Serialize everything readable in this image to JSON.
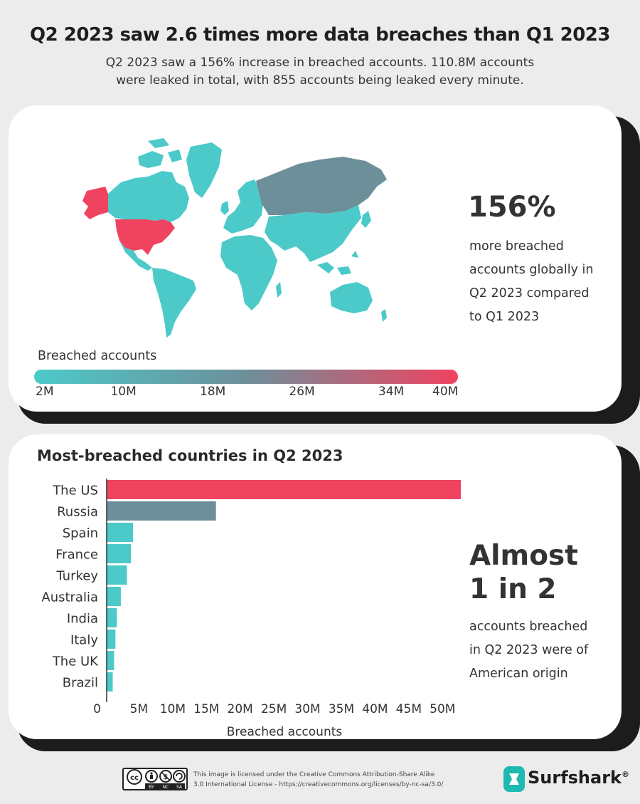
{
  "header": {
    "title": "Q2 2023 saw 2.6 times more data breaches than Q1 2023",
    "subtitle_line1": "Q2 2023 saw a 156% increase in breached accounts. 110.8M accounts",
    "subtitle_line2": "were leaked in total, with 855 accounts being leaked every minute."
  },
  "map_panel": {
    "stat_value": "156%",
    "stat_lines": [
      "more breached",
      "accounts globally in",
      "Q2 2023 compared",
      "to Q1 2023"
    ],
    "legend_title": "Breached accounts",
    "legend_ticks": [
      "2M",
      "10M",
      "18M",
      "26M",
      "34M",
      "40M"
    ],
    "legend_tick_values": [
      2,
      10,
      18,
      26,
      34,
      40
    ],
    "legend_range": [
      2,
      40
    ],
    "scale_colors": [
      "#4cc9c9",
      "#6d8f9a",
      "#f0435f"
    ]
  },
  "bar_panel": {
    "stat_value_line1": "Almost",
    "stat_value_line2": "1 in 2",
    "stat_lines": [
      "accounts breached",
      "in Q2 2023 were of",
      "American origin"
    ]
  },
  "chart_data": {
    "type": "bar",
    "orientation": "horizontal",
    "title": "Most-breached countries in Q2 2023",
    "xlabel": "Breached accounts",
    "ylabel": "",
    "categories": [
      "The US",
      "Russia",
      "Spain",
      "France",
      "Turkey",
      "Australia",
      "India",
      "Italy",
      "The UK",
      "Brazil"
    ],
    "values": [
      52.5,
      16.2,
      3.9,
      3.6,
      3.0,
      2.1,
      1.5,
      1.3,
      1.1,
      0.9
    ],
    "colors": [
      "#f0435f",
      "#6d8f9a",
      "#4cc9c9",
      "#4cc9c9",
      "#4cc9c9",
      "#4cc9c9",
      "#4cc9c9",
      "#4cc9c9",
      "#4cc9c9",
      "#4cc9c9"
    ],
    "x_ticks": [
      "0",
      "5M",
      "10M",
      "15M",
      "20M",
      "25M",
      "30M",
      "35M",
      "40M",
      "45M",
      "50M"
    ],
    "x_tick_values": [
      0,
      5,
      10,
      15,
      20,
      25,
      30,
      35,
      40,
      45,
      50
    ],
    "xlim": [
      0,
      52.5
    ],
    "grid": false
  },
  "footer": {
    "cc_labels": [
      "BY",
      "NC",
      "SA"
    ],
    "license_line1": "This image is licensed under the Creative Commons Attribution-Share Alike",
    "license_line2": "3.0 International License - https://creativecommons.org/licenses/by-nc-sa/3.0/",
    "brand_name": "Surfshark",
    "brand_mark": "®"
  }
}
